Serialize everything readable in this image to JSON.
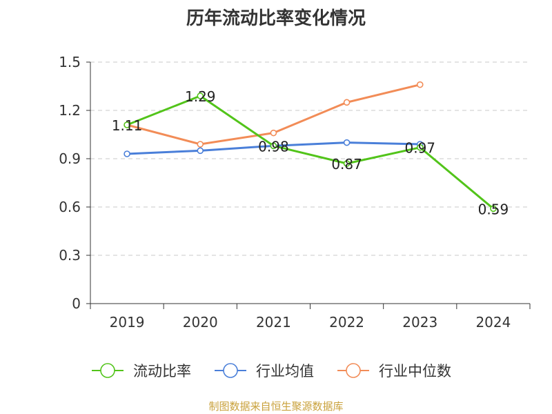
{
  "chart_data": {
    "type": "line",
    "title": "历年流动比率变化情况",
    "categories": [
      "2019",
      "2020",
      "2021",
      "2022",
      "2023",
      "2024"
    ],
    "ylim": [
      0,
      1.5
    ],
    "yticks": [
      "0",
      "0.3",
      "0.6",
      "0.9",
      "1.2",
      "1.5"
    ],
    "grid": "horizontal dashed",
    "legend_position": "bottom",
    "series": [
      {
        "name": "流动比率",
        "color": "#52c41a",
        "values": [
          1.11,
          1.29,
          0.98,
          0.87,
          0.97,
          0.59
        ],
        "labels": [
          "1.11",
          "1.29",
          "0.98",
          "0.87",
          "0.97",
          "0.59"
        ]
      },
      {
        "name": "行业均值",
        "color": "#4a7fd9",
        "values": [
          0.93,
          0.95,
          0.98,
          1.0,
          0.99,
          null
        ]
      },
      {
        "name": "行业中位数",
        "color": "#f28c57",
        "values": [
          1.11,
          0.99,
          1.06,
          1.25,
          1.36,
          null
        ]
      }
    ]
  },
  "source": "制图数据来自恒生聚源数据库"
}
